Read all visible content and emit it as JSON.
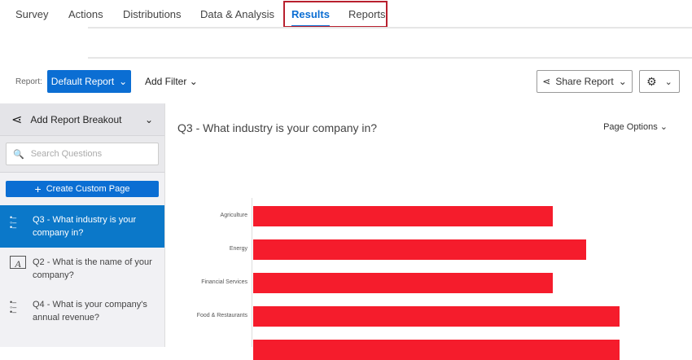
{
  "nav": {
    "tabs": [
      "Survey",
      "Actions",
      "Distributions",
      "Data & Analysis",
      "Results",
      "Reports"
    ],
    "active": "Results"
  },
  "toolbar": {
    "report_label": "Report:",
    "report_value": "Default Report",
    "add_filter": "Add Filter",
    "share": "Share Report"
  },
  "sidebar": {
    "breakout": "Add Report Breakout",
    "search_placeholder": "Search Questions",
    "create": "Create Custom Page",
    "questions": [
      {
        "label": "Q3 - What industry is your company in?",
        "icon": "multiple-choice-icon",
        "selected": true
      },
      {
        "label": "Q2 - What is the name of your company?",
        "icon": "text-entry-icon"
      },
      {
        "label": "Q4 - What is your company's annual revenue?",
        "icon": "multiple-choice-icon"
      }
    ]
  },
  "main": {
    "title": "Q3 - What industry is your company in?",
    "page_options": "Page Options"
  },
  "colors": {
    "accent": "#0b6ed3",
    "bar": "#f51c2c",
    "highlight": "#b8202e"
  },
  "chart_data": {
    "type": "bar",
    "orientation": "horizontal",
    "categories": [
      "Agriculture",
      "Energy",
      "Financial Services",
      "Food & Restaurants",
      ""
    ],
    "values": [
      9,
      10,
      9,
      11,
      11
    ],
    "grid": false
  }
}
